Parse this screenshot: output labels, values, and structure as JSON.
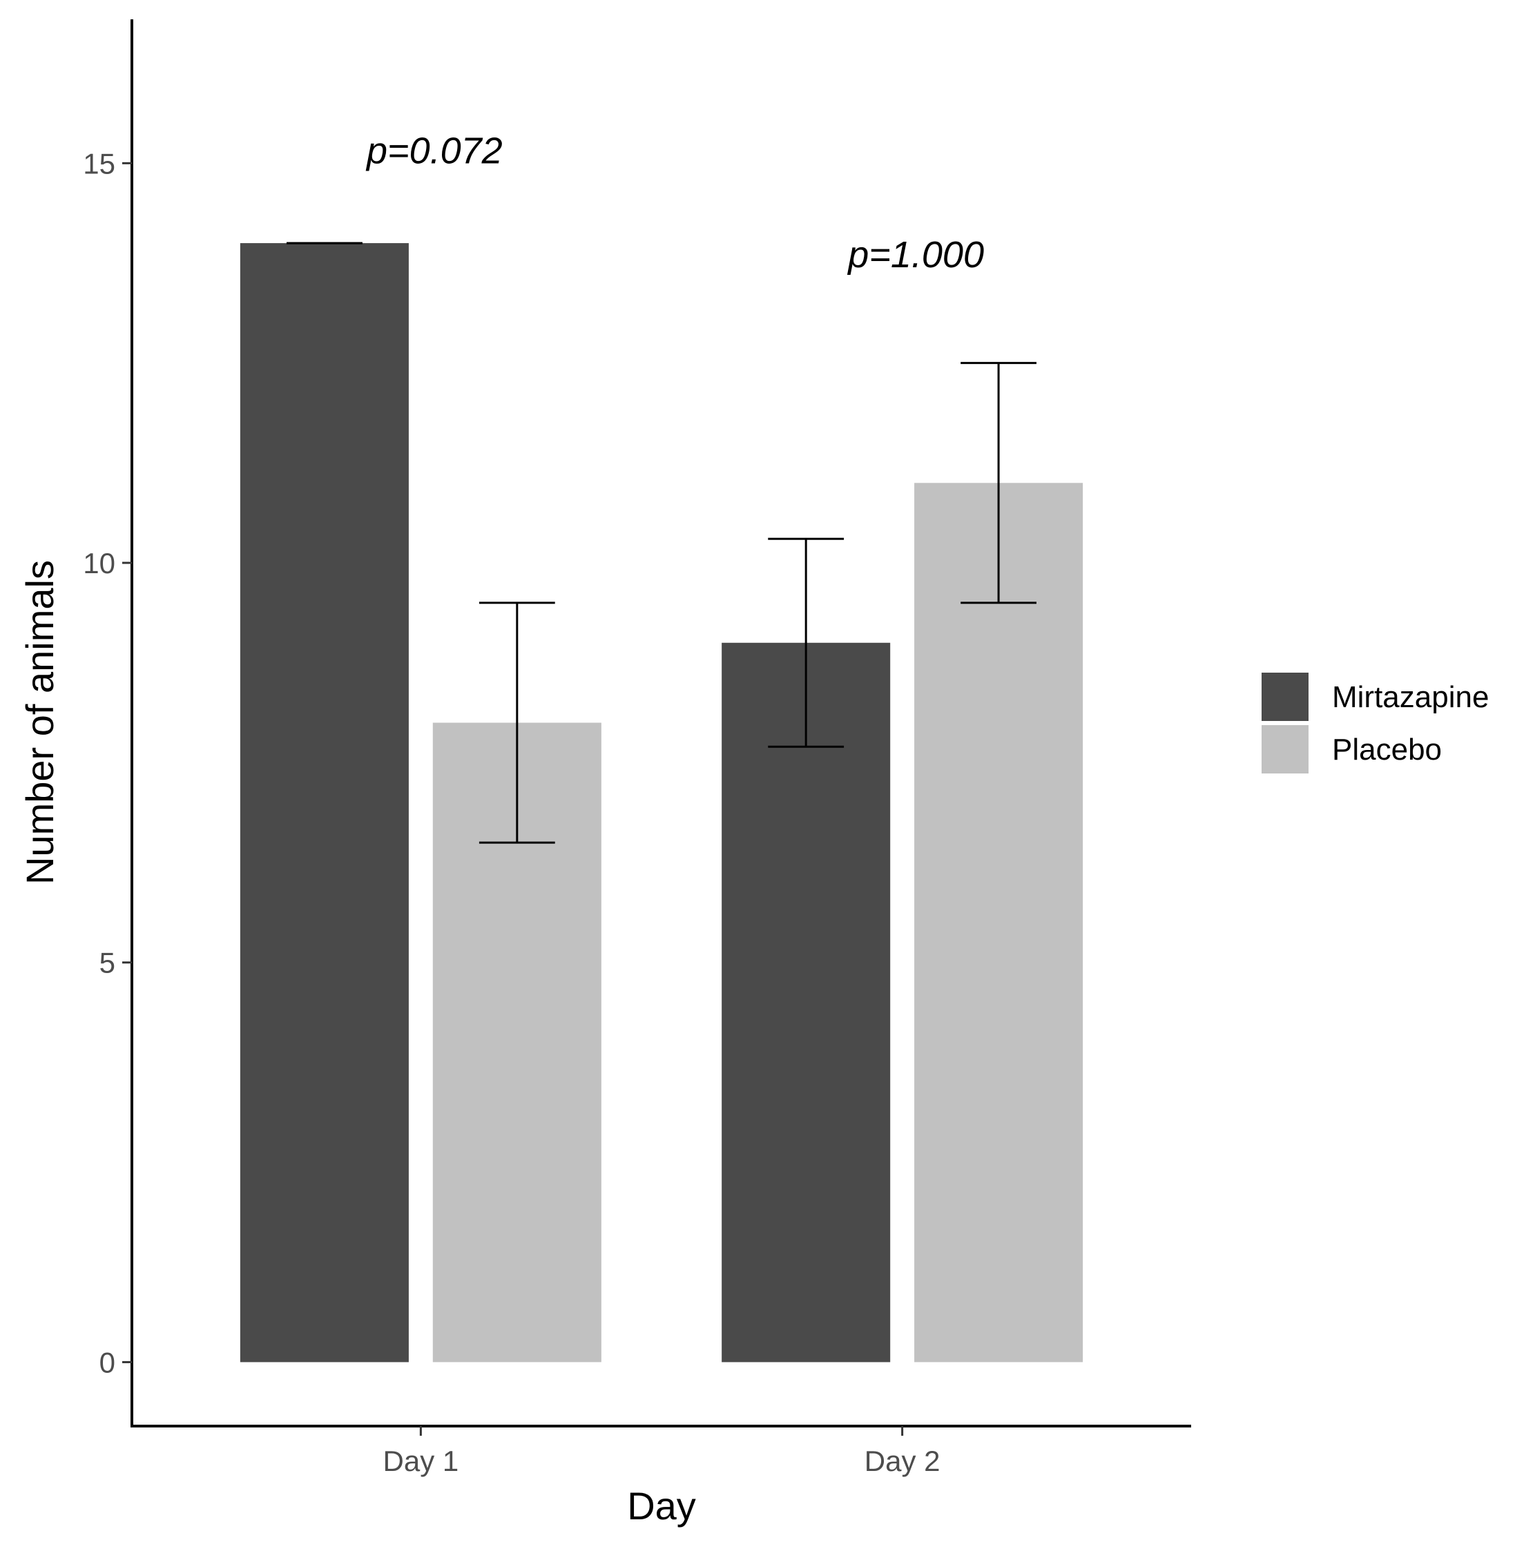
{
  "chart_data": {
    "type": "bar",
    "title": "",
    "xlabel": "Day",
    "ylabel": "Number of animals",
    "ylim": [
      -0.8,
      16.8
    ],
    "yticks": [
      0,
      5,
      10,
      15
    ],
    "categories": [
      "Day 1",
      "Day 2"
    ],
    "series": [
      {
        "name": "Mirtazapine",
        "color": "#4a4a4a",
        "values": [
          14,
          9
        ],
        "error_low": [
          14,
          7.7
        ],
        "error_high": [
          14,
          10.3
        ]
      },
      {
        "name": "Placebo",
        "color": "#c1c1c1",
        "values": [
          8,
          11
        ],
        "error_low": [
          6.5,
          9.5
        ],
        "error_high": [
          9.5,
          12.5
        ]
      }
    ],
    "annotations": [
      {
        "category": "Day 1",
        "text": "p=0.072",
        "y": 15
      },
      {
        "category": "Day 2",
        "text": "p=1.000",
        "y": 13.7
      }
    ],
    "legend": "right",
    "grid": false
  }
}
